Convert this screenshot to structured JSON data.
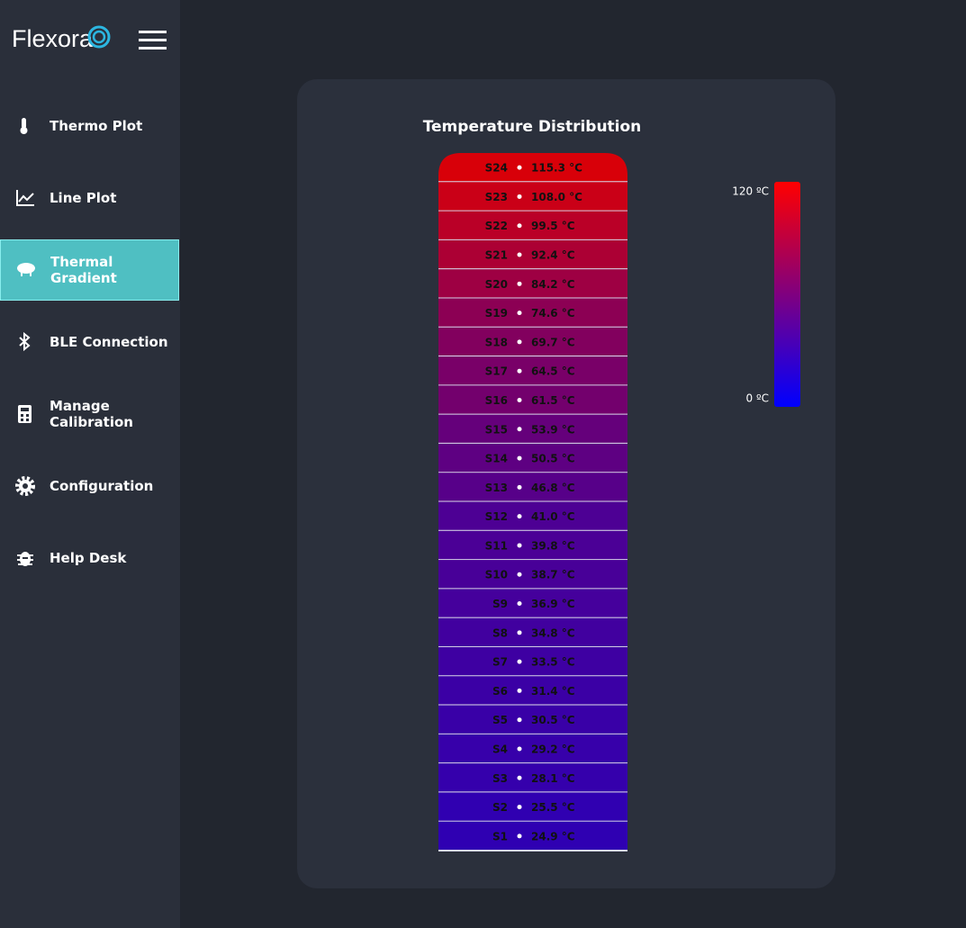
{
  "brand": "Flexora",
  "nav": [
    "Thermo Plot",
    "Line Plot",
    "Thermal Gradient",
    "BLE Connection",
    "Manage Calibration",
    "Configuration",
    "Help Desk"
  ],
  "active_nav": 2,
  "panel": {
    "title": "Temperature Distribution"
  },
  "sensors": {
    "names": [
      "S24",
      "S23",
      "S22",
      "S21",
      "S20",
      "S19",
      "S18",
      "S17",
      "S16",
      "S15",
      "S14",
      "S13",
      "S12",
      "S11",
      "S10",
      "S9",
      "S8",
      "S7",
      "S6",
      "S5",
      "S4",
      "S3",
      "S2",
      "S1"
    ],
    "values": [
      115.3,
      108.0,
      99.5,
      92.4,
      84.2,
      74.6,
      69.7,
      64.5,
      61.5,
      53.9,
      50.5,
      46.8,
      41.0,
      39.8,
      38.7,
      36.9,
      34.8,
      33.5,
      31.4,
      30.5,
      29.2,
      28.1,
      25.5,
      24.9
    ],
    "value_labels": [
      "115.3 °C",
      "108.0 °C",
      "99.5 °C",
      "92.4 °C",
      "84.2 °C",
      "74.6 °C",
      "69.7 °C",
      "64.5 °C",
      "61.5 °C",
      "53.9 °C",
      "50.5 °C",
      "46.8 °C",
      "41.0 °C",
      "39.8 °C",
      "38.7 °C",
      "36.9 °C",
      "34.8 °C",
      "33.5 °C",
      "31.4 °C",
      "30.5 °C",
      "29.2 °C",
      "28.1 °C",
      "25.5 °C",
      "24.9 °C"
    ]
  },
  "scale": {
    "min": 0,
    "max": 120,
    "min_label": "0 ºC",
    "max_label": "120 ºC",
    "min_color": "#0000ff",
    "max_color": "#ff0000"
  }
}
